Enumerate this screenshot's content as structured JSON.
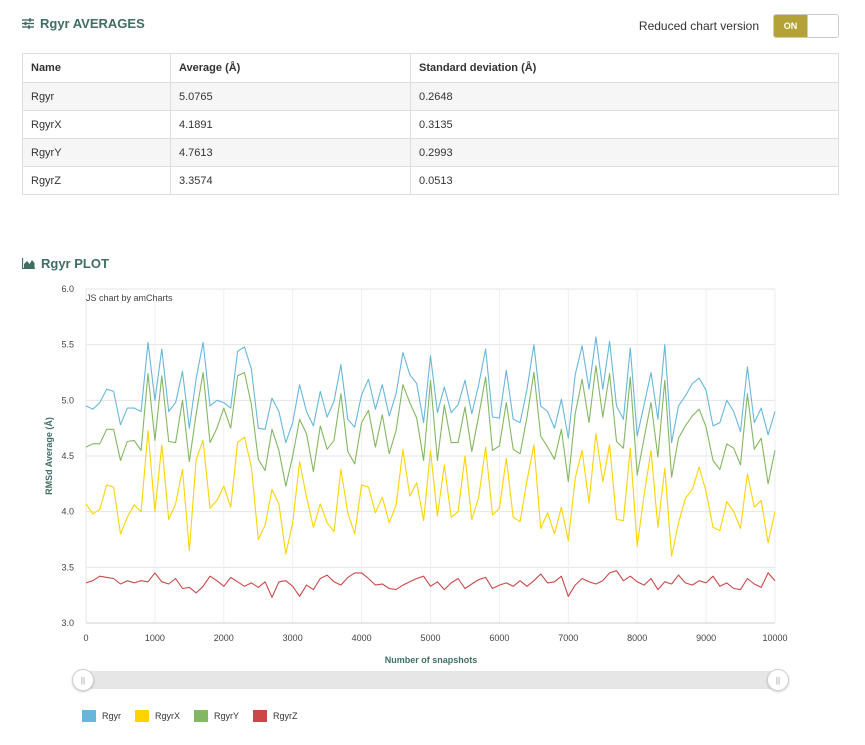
{
  "averages": {
    "title": "Rgyr AVERAGES",
    "toggle": {
      "label": "Reduced chart version",
      "state": "ON"
    },
    "columns": [
      "Name",
      "Average (Å)",
      "Standard deviation (Å)"
    ],
    "rows": [
      [
        "Rgyr",
        "5.0765",
        "0.2648"
      ],
      [
        "RgyrX",
        "4.1891",
        "0.3135"
      ],
      [
        "RgyrY",
        "4.7613",
        "0.2993"
      ],
      [
        "RgyrZ",
        "3.3574",
        "0.0513"
      ]
    ]
  },
  "plot": {
    "title": "Rgyr PLOT",
    "credit": "JS chart by amCharts"
  },
  "chart_data": {
    "type": "line",
    "xlabel": "Number of snapshots",
    "ylabel": "RMSd Average (Å)",
    "xlim": [
      0,
      10000
    ],
    "ylim": [
      3.0,
      6.0
    ],
    "x_ticks": [
      "0",
      "1000",
      "2000",
      "3000",
      "4000",
      "5000",
      "6000",
      "7000",
      "8000",
      "9000",
      "10000"
    ],
    "y_ticks": [
      "3.0",
      "3.5",
      "4.0",
      "4.5",
      "5.0",
      "5.5",
      "6.0"
    ],
    "grid": true,
    "legend_position": "bottom-left",
    "series": [
      {
        "name": "Rgyr",
        "color": "#67b7dc",
        "x": [
          0,
          100,
          200,
          300,
          400,
          500,
          600,
          700,
          800,
          900,
          1000,
          1100,
          1200,
          1300,
          1400,
          1500,
          1600,
          1700,
          1800,
          1900,
          2000,
          2100,
          2200,
          2300,
          2400,
          2500,
          2600,
          2700,
          2800,
          2900,
          3000,
          3100,
          3200,
          3300,
          3400,
          3500,
          3600,
          3700,
          3800,
          3900,
          4000,
          4100,
          4200,
          4300,
          4400,
          4500,
          4600,
          4700,
          4800,
          4900,
          5000,
          5100,
          5200,
          5300,
          5400,
          5500,
          5600,
          5700,
          5800,
          5900,
          6000,
          6100,
          6200,
          6300,
          6400,
          6500,
          6600,
          6700,
          6800,
          6900,
          7000,
          7100,
          7200,
          7300,
          7400,
          7500,
          7600,
          7700,
          7800,
          7900,
          8000,
          8100,
          8200,
          8300,
          8400,
          8500,
          8600,
          8700,
          8800,
          8900,
          9000,
          9100,
          9200,
          9300,
          9400,
          9500,
          9600,
          9700,
          9800,
          9900,
          10000
        ],
        "values": [
          4.95,
          4.92,
          4.98,
          5.1,
          5.08,
          4.78,
          4.93,
          4.93,
          4.9,
          5.52,
          5.0,
          5.46,
          4.9,
          4.98,
          5.26,
          4.75,
          5.2,
          5.52,
          4.95,
          5.0,
          4.98,
          4.93,
          5.44,
          5.48,
          5.28,
          4.75,
          4.74,
          5.02,
          4.9,
          4.62,
          4.8,
          5.14,
          4.9,
          4.77,
          5.08,
          4.85,
          4.99,
          5.32,
          4.83,
          4.76,
          5.05,
          5.19,
          4.92,
          5.14,
          4.86,
          5.06,
          5.43,
          5.23,
          5.15,
          4.8,
          5.4,
          4.89,
          5.12,
          4.89,
          4.96,
          5.18,
          4.88,
          5.14,
          5.46,
          4.85,
          4.84,
          5.27,
          4.83,
          4.8,
          5.1,
          5.5,
          4.95,
          4.9,
          4.75,
          5.01,
          4.66,
          5.23,
          5.49,
          5.1,
          5.57,
          5.1,
          5.53,
          4.95,
          4.83,
          5.47,
          4.68,
          4.96,
          5.25,
          4.83,
          5.5,
          4.62,
          4.95,
          5.04,
          5.15,
          5.2,
          5.09,
          4.77,
          4.8,
          5.0,
          4.9,
          4.72,
          5.3,
          4.8,
          4.93,
          4.69,
          4.9
        ]
      },
      {
        "name": "RgyrX",
        "color": "#fdd400",
        "x": [
          0,
          100,
          200,
          300,
          400,
          500,
          600,
          700,
          800,
          900,
          1000,
          1100,
          1200,
          1300,
          1400,
          1500,
          1600,
          1700,
          1800,
          1900,
          2000,
          2100,
          2200,
          2300,
          2400,
          2500,
          2600,
          2700,
          2800,
          2900,
          3000,
          3100,
          3200,
          3300,
          3400,
          3500,
          3600,
          3700,
          3800,
          3900,
          4000,
          4100,
          4200,
          4300,
          4400,
          4500,
          4600,
          4700,
          4800,
          4900,
          5000,
          5100,
          5200,
          5300,
          5400,
          5500,
          5600,
          5700,
          5800,
          5900,
          6000,
          6100,
          6200,
          6300,
          6400,
          6500,
          6600,
          6700,
          6800,
          6900,
          7000,
          7100,
          7200,
          7300,
          7400,
          7500,
          7600,
          7700,
          7800,
          7900,
          8000,
          8100,
          8200,
          8300,
          8400,
          8500,
          8600,
          8700,
          8800,
          8900,
          9000,
          9100,
          9200,
          9300,
          9400,
          9500,
          9600,
          9700,
          9800,
          9900,
          10000
        ],
        "values": [
          4.07,
          3.98,
          4.02,
          4.24,
          4.22,
          3.8,
          3.95,
          4.06,
          4.0,
          4.73,
          4.0,
          4.6,
          3.93,
          4.07,
          4.38,
          3.65,
          4.47,
          4.64,
          4.03,
          4.1,
          4.23,
          4.04,
          4.62,
          4.67,
          4.4,
          3.75,
          3.88,
          4.2,
          4.07,
          3.62,
          3.9,
          4.45,
          4.13,
          3.86,
          4.07,
          3.9,
          3.82,
          4.38,
          3.99,
          3.8,
          4.24,
          4.22,
          3.99,
          4.13,
          3.9,
          4.06,
          4.56,
          4.14,
          4.26,
          3.92,
          4.55,
          3.96,
          4.42,
          3.95,
          4.0,
          4.5,
          3.93,
          4.13,
          4.58,
          3.97,
          4.03,
          4.48,
          3.95,
          3.91,
          4.28,
          4.6,
          3.85,
          3.99,
          3.8,
          4.04,
          3.74,
          4.3,
          4.55,
          4.08,
          4.7,
          4.27,
          4.6,
          3.93,
          3.92,
          4.57,
          3.69,
          4.15,
          4.55,
          3.86,
          4.39,
          3.6,
          3.9,
          4.12,
          4.2,
          4.4,
          4.18,
          3.86,
          3.83,
          4.09,
          4.0,
          3.85,
          4.34,
          4.04,
          4.1,
          3.72,
          4.0
        ]
      },
      {
        "name": "RgyrY",
        "color": "#84b761",
        "x": [
          0,
          100,
          200,
          300,
          400,
          500,
          600,
          700,
          800,
          900,
          1000,
          1100,
          1200,
          1300,
          1400,
          1500,
          1600,
          1700,
          1800,
          1900,
          2000,
          2100,
          2200,
          2300,
          2400,
          2500,
          2600,
          2700,
          2800,
          2900,
          3000,
          3100,
          3200,
          3300,
          3400,
          3500,
          3600,
          3700,
          3800,
          3900,
          4000,
          4100,
          4200,
          4300,
          4400,
          4500,
          4600,
          4700,
          4800,
          4900,
          5000,
          5100,
          5200,
          5300,
          5400,
          5500,
          5600,
          5700,
          5800,
          5900,
          6000,
          6100,
          6200,
          6300,
          6400,
          6500,
          6600,
          6700,
          6800,
          6900,
          7000,
          7100,
          7200,
          7300,
          7400,
          7500,
          7600,
          7700,
          7800,
          7900,
          8000,
          8100,
          8200,
          8300,
          8400,
          8500,
          8600,
          8700,
          8800,
          8900,
          9000,
          9100,
          9200,
          9300,
          9400,
          9500,
          9600,
          9700,
          9800,
          9900,
          10000
        ],
        "values": [
          4.58,
          4.61,
          4.61,
          4.74,
          4.74,
          4.46,
          4.63,
          4.64,
          4.55,
          5.24,
          4.64,
          5.22,
          4.63,
          4.62,
          5.0,
          4.45,
          4.88,
          5.25,
          4.62,
          4.75,
          4.93,
          4.75,
          5.22,
          5.25,
          4.96,
          4.47,
          4.37,
          4.74,
          4.55,
          4.23,
          4.5,
          4.83,
          4.7,
          4.36,
          4.77,
          4.56,
          4.64,
          5.06,
          4.54,
          4.43,
          4.8,
          4.91,
          4.58,
          4.87,
          4.52,
          4.73,
          5.14,
          4.98,
          4.84,
          4.46,
          5.18,
          4.46,
          4.96,
          4.62,
          4.62,
          4.94,
          4.54,
          4.86,
          5.21,
          4.55,
          4.59,
          4.98,
          4.56,
          4.52,
          4.85,
          5.25,
          4.68,
          4.58,
          4.47,
          4.74,
          4.27,
          4.88,
          5.19,
          4.8,
          5.31,
          4.85,
          5.24,
          4.63,
          4.57,
          5.21,
          4.33,
          4.66,
          4.98,
          4.49,
          5.18,
          4.31,
          4.66,
          4.77,
          4.86,
          4.92,
          4.76,
          4.46,
          4.38,
          4.61,
          4.57,
          4.42,
          5.06,
          4.56,
          4.66,
          4.25,
          4.55
        ]
      },
      {
        "name": "RgyrZ",
        "color": "#cc4748",
        "x": [
          0,
          100,
          200,
          300,
          400,
          500,
          600,
          700,
          800,
          900,
          1000,
          1100,
          1200,
          1300,
          1400,
          1500,
          1600,
          1700,
          1800,
          1900,
          2000,
          2100,
          2200,
          2300,
          2400,
          2500,
          2600,
          2700,
          2800,
          2900,
          3000,
          3100,
          3200,
          3300,
          3400,
          3500,
          3600,
          3700,
          3800,
          3900,
          4000,
          4100,
          4200,
          4300,
          4400,
          4500,
          4600,
          4700,
          4800,
          4900,
          5000,
          5100,
          5200,
          5300,
          5400,
          5500,
          5600,
          5700,
          5800,
          5900,
          6000,
          6100,
          6200,
          6300,
          6400,
          6500,
          6600,
          6700,
          6800,
          6900,
          7000,
          7100,
          7200,
          7300,
          7400,
          7500,
          7600,
          7700,
          7800,
          7900,
          8000,
          8100,
          8200,
          8300,
          8400,
          8500,
          8600,
          8700,
          8800,
          8900,
          9000,
          9100,
          9200,
          9300,
          9400,
          9500,
          9600,
          9700,
          9800,
          9900,
          10000
        ],
        "values": [
          3.36,
          3.38,
          3.42,
          3.41,
          3.4,
          3.35,
          3.38,
          3.36,
          3.38,
          3.37,
          3.45,
          3.37,
          3.35,
          3.4,
          3.31,
          3.32,
          3.27,
          3.33,
          3.42,
          3.38,
          3.33,
          3.41,
          3.37,
          3.33,
          3.36,
          3.32,
          3.37,
          3.23,
          3.37,
          3.38,
          3.33,
          3.24,
          3.34,
          3.3,
          3.4,
          3.43,
          3.37,
          3.34,
          3.41,
          3.45,
          3.45,
          3.4,
          3.34,
          3.35,
          3.31,
          3.3,
          3.34,
          3.37,
          3.4,
          3.42,
          3.33,
          3.37,
          3.3,
          3.36,
          3.4,
          3.31,
          3.35,
          3.39,
          3.41,
          3.31,
          3.34,
          3.36,
          3.33,
          3.38,
          3.33,
          3.38,
          3.44,
          3.36,
          3.37,
          3.42,
          3.24,
          3.34,
          3.4,
          3.37,
          3.35,
          3.38,
          3.45,
          3.47,
          3.38,
          3.42,
          3.37,
          3.34,
          3.4,
          3.3,
          3.37,
          3.35,
          3.43,
          3.36,
          3.34,
          3.38,
          3.36,
          3.42,
          3.33,
          3.36,
          3.31,
          3.3,
          3.4,
          3.35,
          3.32,
          3.45,
          3.38
        ]
      }
    ]
  }
}
